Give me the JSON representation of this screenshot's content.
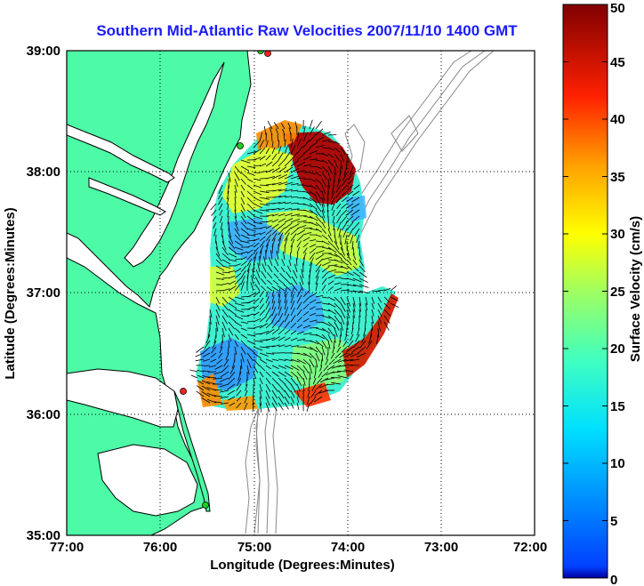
{
  "map": {
    "title": "Southern Mid-Atlantic Raw Velocities 2007/11/10 1400 GMT",
    "xlabel": "Longitude (Degrees:Minutes)",
    "ylabel": "Latitude (Degrees:Minutes)",
    "lon_range": [
      -77.0,
      -72.0
    ],
    "lat_range": [
      35.0,
      39.0
    ],
    "lon_ticks": [
      {
        "value": -77.0,
        "label": "77:00"
      },
      {
        "value": -76.0,
        "label": "76:00"
      },
      {
        "value": -75.0,
        "label": "75:00"
      },
      {
        "value": -74.0,
        "label": "74:00"
      },
      {
        "value": -73.0,
        "label": "73:00"
      },
      {
        "value": -72.0,
        "label": "72:00"
      }
    ],
    "lat_ticks": [
      {
        "value": 35.0,
        "label": "35:00"
      },
      {
        "value": 36.0,
        "label": "36:00"
      },
      {
        "value": 37.0,
        "label": "37:00"
      },
      {
        "value": 38.0,
        "label": "38:00"
      },
      {
        "value": 39.0,
        "label": "39:00"
      }
    ],
    "grid": "dotted",
    "colors": {
      "land": "#4dfaa6",
      "coast": "#000000",
      "ocean": "#ffffff",
      "bathymetry": "#888888",
      "station_active": "#ff2020",
      "station_inactive": "#20d020"
    },
    "stations": [
      {
        "lon": -74.85,
        "lat": 39.0,
        "status": "active"
      },
      {
        "lon": -74.92,
        "lat": 39.02,
        "status": "inactive"
      },
      {
        "lon": -75.15,
        "lat": 38.22,
        "status": "inactive"
      },
      {
        "lon": -75.74,
        "lat": 36.2,
        "status": "active"
      },
      {
        "lon": -75.48,
        "lat": 35.25,
        "status": "inactive"
      }
    ]
  },
  "colorbar": {
    "label": "Surface Velocity (cm/s)",
    "min": 0,
    "max": 50,
    "ticks": [
      {
        "value": 0,
        "label": "0"
      },
      {
        "value": 5,
        "label": "5"
      },
      {
        "value": 10,
        "label": "10"
      },
      {
        "value": 15,
        "label": "15"
      },
      {
        "value": 20,
        "label": "20"
      },
      {
        "value": 25,
        "label": "25"
      },
      {
        "value": 30,
        "label": "30"
      },
      {
        "value": 35,
        "label": "35"
      },
      {
        "value": 40,
        "label": "40"
      },
      {
        "value": 45,
        "label": "45"
      },
      {
        "value": 50,
        "label": "50"
      }
    ],
    "colormap": "jet"
  }
}
